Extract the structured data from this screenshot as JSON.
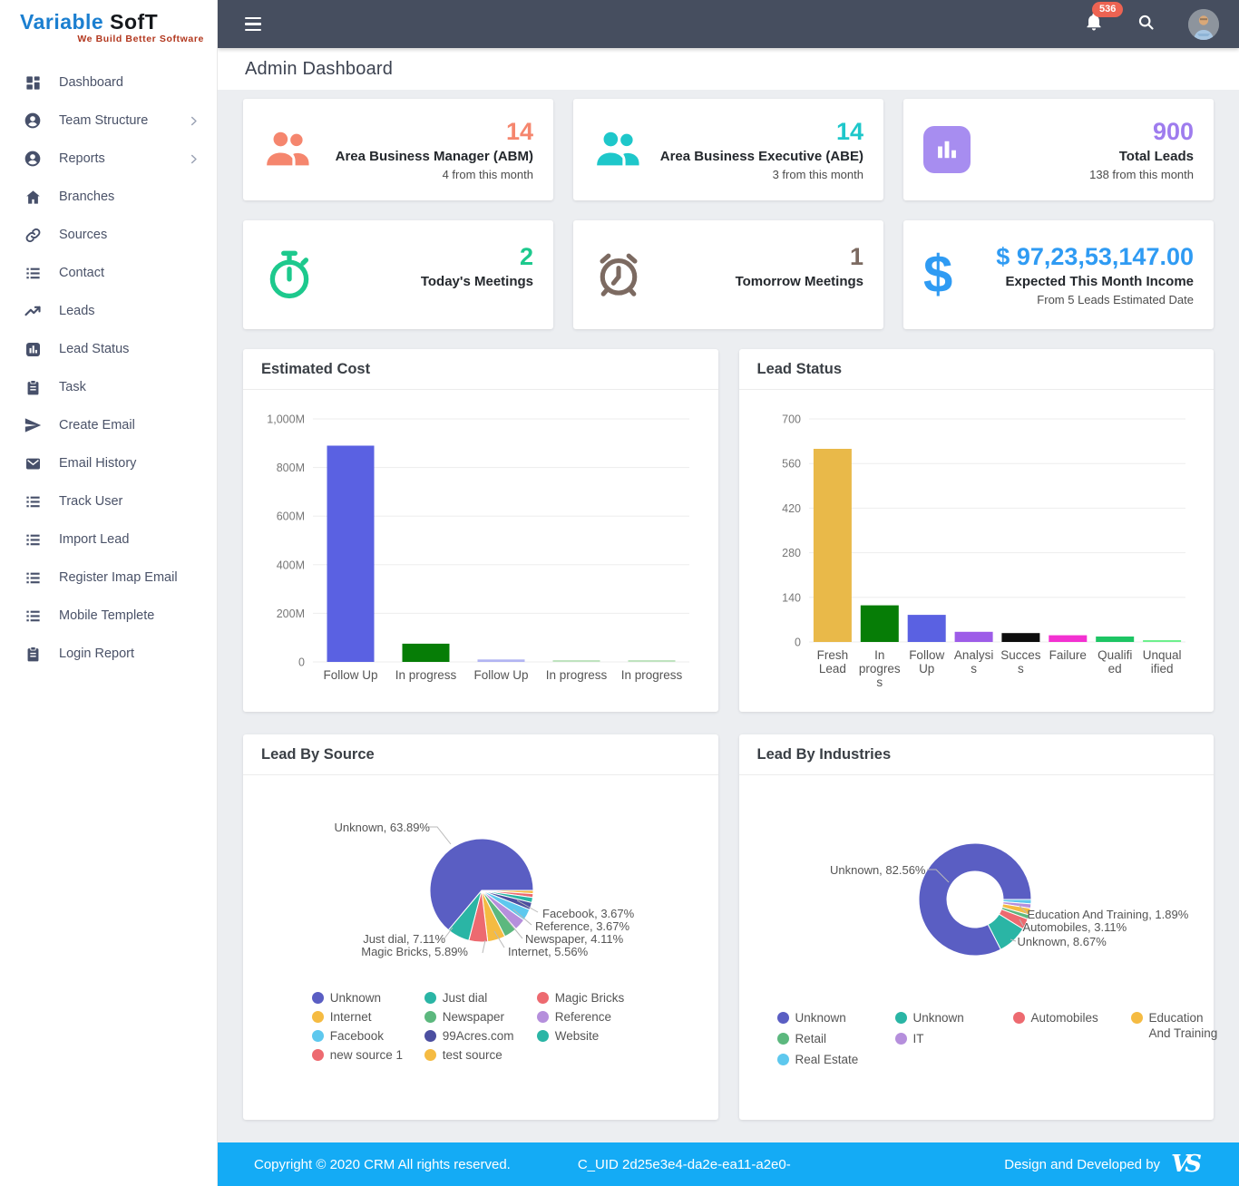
{
  "sidebar": {
    "logo_word1": "Variable",
    "logo_word2": "SofT",
    "logo_tagline": "We Build Better Software",
    "items": [
      {
        "label": "Dashboard",
        "icon": "dashboard-icon",
        "has_submenu": false
      },
      {
        "label": "Team Structure",
        "icon": "user-icon",
        "has_submenu": true
      },
      {
        "label": "Reports",
        "icon": "user-icon",
        "has_submenu": true
      },
      {
        "label": "Branches",
        "icon": "home-icon",
        "has_submenu": false
      },
      {
        "label": "Sources",
        "icon": "link-icon",
        "has_submenu": false
      },
      {
        "label": "Contact",
        "icon": "list-icon",
        "has_submenu": false
      },
      {
        "label": "Leads",
        "icon": "trending-up-icon",
        "has_submenu": false
      },
      {
        "label": "Lead Status",
        "icon": "bar-chart-icon",
        "has_submenu": false
      },
      {
        "label": "Task",
        "icon": "clipboard-icon",
        "has_submenu": false
      },
      {
        "label": "Create Email",
        "icon": "send-icon",
        "has_submenu": false
      },
      {
        "label": "Email History",
        "icon": "mail-icon",
        "has_submenu": false
      },
      {
        "label": "Track User",
        "icon": "list-icon",
        "has_submenu": false
      },
      {
        "label": "Import Lead",
        "icon": "list-icon",
        "has_submenu": false
      },
      {
        "label": "Register Imap Email",
        "icon": "list-icon",
        "has_submenu": false
      },
      {
        "label": "Mobile Templete",
        "icon": "list-icon",
        "has_submenu": false
      },
      {
        "label": "Login Report",
        "icon": "clipboard-icon",
        "has_submenu": false
      }
    ]
  },
  "topbar": {
    "notification_count": "536"
  },
  "page": {
    "title": "Admin Dashboard"
  },
  "stat_cards": [
    {
      "value": "14",
      "title": "Area Business Manager (ABM)",
      "subtitle": "4 from this month",
      "accent": "#f5866e",
      "icon": "people-icon"
    },
    {
      "value": "14",
      "title": "Area Business Executive (ABE)",
      "subtitle": "3 from this month",
      "accent": "#1ec7ca",
      "icon": "people-icon"
    },
    {
      "value": "900",
      "title": "Total Leads",
      "subtitle": "138 from this month",
      "accent": "#9e7cee",
      "icon": "bar-chart-icon",
      "icon_bg": "#a78df0"
    },
    {
      "value": "2",
      "title": "Today's Meetings",
      "subtitle": "",
      "accent": "#1dc98d",
      "icon": "stopwatch-icon"
    },
    {
      "value": "1",
      "title": "Tomorrow Meetings",
      "subtitle": "",
      "accent": "#7c6a61",
      "icon": "alarm-clock-icon"
    },
    {
      "value": "$ 97,23,53,147.00",
      "title": "Expected This Month Income",
      "subtitle": "From 5 Leads Estimated Date",
      "accent": "#2f9bf3",
      "icon": "dollar-icon"
    }
  ],
  "chart_data": [
    {
      "id": "estimated_cost",
      "type": "bar",
      "title": "Estimated Cost",
      "categories": [
        "Follow Up",
        "In progress",
        "Follow Up",
        "In progress",
        "In progress"
      ],
      "category_lines": [
        [
          "Follow Up"
        ],
        [
          "In progress"
        ],
        [
          "Follow Up"
        ],
        [
          "In progress"
        ],
        [
          "In progress"
        ]
      ],
      "values": [
        890,
        75,
        10,
        4,
        4
      ],
      "value_unit": "M",
      "colors": [
        "#5a61e2",
        "#067d06",
        "#b2b5f2",
        "#bfe3bf",
        "#bfe3bf"
      ],
      "xlabel": "",
      "ylabel": "",
      "ylim": [
        0,
        1000
      ],
      "yticks": [
        "0",
        "200M",
        "400M",
        "600M",
        "800M",
        "1,000M"
      ],
      "grid": true,
      "legend_position": "none"
    },
    {
      "id": "lead_status",
      "type": "bar",
      "title": "Lead Status",
      "categories": [
        "Fresh Lead",
        "In progress",
        "Follow Up",
        "Analysis",
        "Success",
        "Failure",
        "Qualified",
        "Unqualified"
      ],
      "category_lines": [
        [
          "Fresh",
          "Lead"
        ],
        [
          "In",
          "progres",
          "s"
        ],
        [
          "Follow",
          "Up"
        ],
        [
          "Analysi",
          "s"
        ],
        [
          "Succes",
          "s"
        ],
        [
          "Failure"
        ],
        [
          "Qualifi",
          "ed"
        ],
        [
          "Unqual",
          "ified"
        ]
      ],
      "values": [
        606,
        115,
        85,
        32,
        28,
        21,
        17,
        5
      ],
      "colors": [
        "#e9b949",
        "#067d06",
        "#5a61e2",
        "#9d5ce8",
        "#0d0d0d",
        "#f331d1",
        "#1dc564",
        "#6ef08e"
      ],
      "xlabel": "",
      "ylabel": "",
      "ylim": [
        0,
        700
      ],
      "yticks": [
        "0",
        "140",
        "280",
        "420",
        "560",
        "700"
      ],
      "grid": true,
      "legend_position": "none"
    },
    {
      "id": "lead_by_source",
      "type": "pie",
      "title": "Lead By Source",
      "slices": [
        {
          "name": "test source",
          "value": 1.0,
          "color": "#f5bb42"
        },
        {
          "name": "new source 1",
          "value": 1.2,
          "color": "#ed6a70"
        },
        {
          "name": "Website",
          "value": 1.6,
          "color": "#2ab5a5"
        },
        {
          "name": "99Acres.com",
          "value": 2.3,
          "color": "#4c4fa0"
        },
        {
          "name": "Facebook",
          "value": 3.67,
          "color": "#5ec8ee"
        },
        {
          "name": "Reference",
          "value": 3.67,
          "color": "#b58fdc"
        },
        {
          "name": "Newspaper",
          "value": 4.11,
          "color": "#5cb87e"
        },
        {
          "name": "Internet",
          "value": 5.56,
          "color": "#f5bb42"
        },
        {
          "name": "Magic Bricks",
          "value": 5.89,
          "color": "#ed6a70"
        },
        {
          "name": "Just dial",
          "value": 7.11,
          "color": "#2ab5a5"
        },
        {
          "name": "Unknown",
          "value": 63.89,
          "color": "#5a5ec3"
        }
      ],
      "annotations": [
        "Unknown, 63.89%",
        "Facebook, 3.67%",
        "Reference, 3.67%",
        "Newspaper, 4.11%",
        "Internet, 5.56%",
        "Just dial, 7.11%",
        "Magic Bricks, 5.89%"
      ],
      "legend_position": "bottom",
      "legend": [
        {
          "name": "Unknown",
          "color": "#5a5ec3"
        },
        {
          "name": "Just dial",
          "color": "#2ab5a5"
        },
        {
          "name": "Magic Bricks",
          "color": "#ed6a70"
        },
        {
          "name": "Internet",
          "color": "#f5bb42"
        },
        {
          "name": "Newspaper",
          "color": "#5cb87e"
        },
        {
          "name": "Reference",
          "color": "#b58fdc"
        },
        {
          "name": "Facebook",
          "color": "#5ec8ee"
        },
        {
          "name": "99Acres.com",
          "color": "#4c4fa0"
        },
        {
          "name": "Website",
          "color": "#2ab5a5"
        },
        {
          "name": "new source 1",
          "color": "#ed6a70"
        },
        {
          "name": "test source",
          "color": "#f5bb42"
        }
      ]
    },
    {
      "id": "lead_by_industries",
      "type": "donut",
      "title": "Lead By Industries",
      "slices": [
        {
          "name": "Real Estate",
          "value": 1.26,
          "color": "#5ec8ee"
        },
        {
          "name": "IT",
          "value": 1.26,
          "color": "#b58fdc"
        },
        {
          "name": "Education And Training",
          "value": 1.89,
          "color": "#f5bb42"
        },
        {
          "name": "Retail",
          "value": 1.26,
          "color": "#5cb87e"
        },
        {
          "name": "Automobiles",
          "value": 3.11,
          "color": "#ed6a70"
        },
        {
          "name": "Unknown",
          "value": 8.67,
          "color": "#2ab5a5"
        },
        {
          "name": "Unknown",
          "value": 82.56,
          "color": "#5a5ec3"
        }
      ],
      "annotations": [
        "Unknown, 82.56%",
        "Education And Training, 1.89%",
        "Automobiles, 3.11%",
        "Unknown, 8.67%"
      ],
      "legend_position": "bottom",
      "legend_columns": [
        [
          {
            "name": "Unknown",
            "color": "#5a5ec3"
          },
          {
            "name": "Retail",
            "color": "#5cb87e"
          },
          {
            "name": "Real Estate",
            "color": "#5ec8ee"
          }
        ],
        [
          {
            "name": "Unknown",
            "color": "#2ab5a5"
          },
          {
            "name": "IT",
            "color": "#b58fdc"
          }
        ],
        [
          {
            "name": "Automobiles",
            "color": "#ed6a70"
          }
        ],
        [
          {
            "name": "Education And Training",
            "color": "#f5bb42"
          }
        ]
      ]
    }
  ],
  "footer": {
    "copyright": "Copyright © 2020 CRM All rights reserved.",
    "cuid": "C_UID 2d25e3e4-da2e-ea11-a2e0-",
    "credit": "Design and Developed by",
    "brand_color": "#14abf5"
  }
}
